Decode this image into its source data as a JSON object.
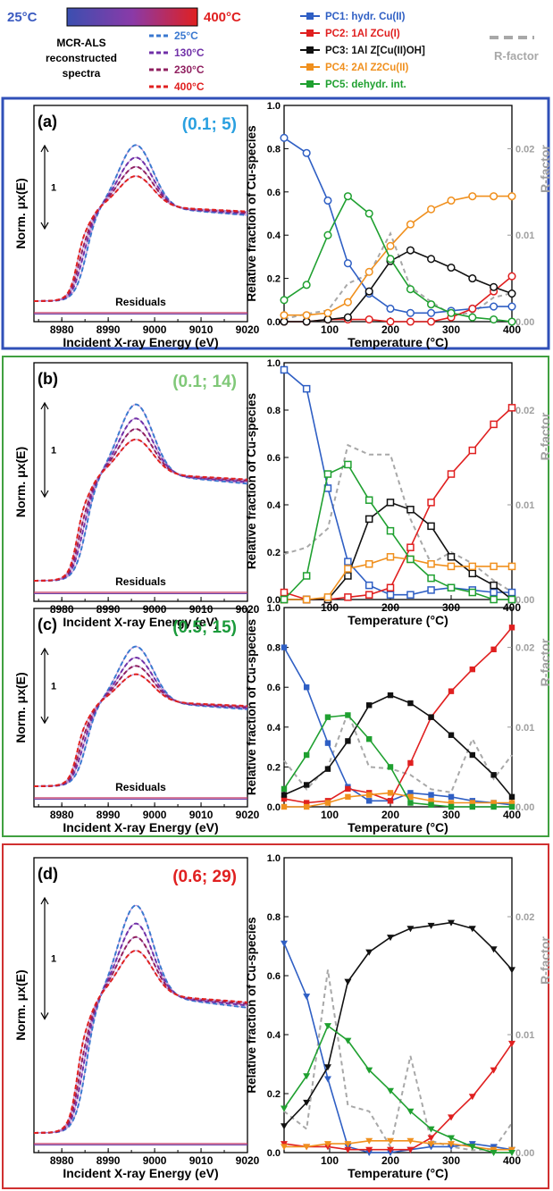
{
  "header": {
    "gradient": {
      "min_label": "25°C",
      "max_label": "400°C",
      "from_color": "#3b4fb0",
      "to_color": "#e02020"
    },
    "mcr_title": [
      "MCR-ALS",
      "reconstructed",
      "spectra"
    ],
    "temps": [
      {
        "label": "25°C",
        "color": "#3a78d0"
      },
      {
        "label": "130°C",
        "color": "#7030a8"
      },
      {
        "label": "230°C",
        "color": "#902060"
      },
      {
        "label": "400°C",
        "color": "#e02020"
      }
    ],
    "components": [
      {
        "id": "PC1",
        "label": "PC1: hydr. Cu(II)",
        "color": "#2f5fc4",
        "marker": "square"
      },
      {
        "id": "PC2",
        "label": "PC2: 1Al ZCu(I)",
        "color": "#e02020",
        "marker": "square"
      },
      {
        "id": "PC3",
        "label": "PC3: 1Al Z[Cu(II)OH]",
        "color": "#111111",
        "marker": "square"
      },
      {
        "id": "PC4",
        "label": "PC4: 2Al Z2Cu(II)",
        "color": "#f0901e",
        "marker": "square"
      },
      {
        "id": "PC5",
        "label": "PC5: dehydr. int.",
        "color": "#1fa030",
        "marker": "square"
      }
    ],
    "rfactor_label": "R-factor",
    "rfactor_color": "#a8a8a8"
  },
  "xanes_axis": {
    "xlabel": "Incident X-ray Energy (eV)",
    "ylabel": "Norm. μx(E)",
    "ticks": [
      "8980",
      "8990",
      "9000",
      "9010",
      "9020"
    ],
    "scale_label": "1",
    "residuals_label": "Residuals"
  },
  "frac_axis": {
    "xlabel": "Temperature (°C)",
    "ylabel": "Relative fraction of Cu-species",
    "rlabel": "R-factor",
    "yticks": [
      "0.0",
      "0.2",
      "0.4",
      "0.6",
      "0.8",
      "1.0"
    ],
    "xticks": [
      "100",
      "200",
      "300",
      "400"
    ],
    "rticks": [
      "0.00",
      "0.01",
      "0.02"
    ]
  },
  "panels": [
    {
      "tag": "(a)",
      "params": "(0.1; 5)",
      "params_color": "#2aa0e0",
      "frame_color": "#3050b8"
    },
    {
      "tag": "(b)",
      "params": "(0.1; 14)",
      "params_color": "#80c878",
      "frame_color": "#40a040"
    },
    {
      "tag": "(c)",
      "params": "(0.5; 15)",
      "params_color": "#1a9a3a",
      "frame_color": "#40a040"
    },
    {
      "tag": "(d)",
      "params": "(0.6; 29)",
      "params_color": "#e02020",
      "frame_color": "#d03030"
    }
  ],
  "chart_data": [
    {
      "panel": "a",
      "type": "line",
      "xlabel": "Temperature (°C)",
      "ylabel": "Relative fraction of Cu-species",
      "y2label": "R-factor",
      "xlim": [
        25,
        400
      ],
      "ylim": [
        0,
        1.0
      ],
      "y2lim": [
        0,
        0.025
      ],
      "marker": "open-circle",
      "x": [
        25,
        62,
        97,
        130,
        165,
        200,
        233,
        267,
        300,
        335,
        370,
        400
      ],
      "series": [
        {
          "name": "PC1: hydr. Cu(II)",
          "values": [
            0.85,
            0.78,
            0.56,
            0.27,
            0.13,
            0.06,
            0.04,
            0.04,
            0.05,
            0.06,
            0.07,
            0.07
          ]
        },
        {
          "name": "PC2: 1Al ZCu(I)",
          "values": [
            0.0,
            0.0,
            0.01,
            0.01,
            0.01,
            0.0,
            0.0,
            0.0,
            0.02,
            0.06,
            0.14,
            0.21
          ]
        },
        {
          "name": "PC3: 1Al Z[Cu(II)OH]",
          "values": [
            0.0,
            0.0,
            0.01,
            0.02,
            0.14,
            0.28,
            0.33,
            0.29,
            0.25,
            0.2,
            0.16,
            0.13
          ]
        },
        {
          "name": "PC4: 2Al Z2Cu(II)",
          "values": [
            0.03,
            0.03,
            0.04,
            0.09,
            0.23,
            0.35,
            0.45,
            0.52,
            0.56,
            0.58,
            0.58,
            0.58
          ]
        },
        {
          "name": "PC5: dehydr. int.",
          "values": [
            0.1,
            0.17,
            0.4,
            0.58,
            0.5,
            0.29,
            0.15,
            0.08,
            0.04,
            0.02,
            0.01,
            0.0
          ]
        }
      ],
      "rfactor": [
        0.0003,
        0.0009,
        0.0013,
        0.0044,
        0.0055,
        0.0102,
        0.004,
        0.0023,
        0.0008,
        0.001,
        0.0028,
        0.0033
      ]
    },
    {
      "panel": "b",
      "type": "line",
      "xlabel": "Temperature (°C)",
      "ylabel": "Relative fraction of Cu-species",
      "y2label": "R-factor",
      "xlim": [
        25,
        400
      ],
      "ylim": [
        0,
        1.0
      ],
      "y2lim": [
        0,
        0.025
      ],
      "marker": "open-square",
      "x": [
        25,
        62,
        97,
        130,
        165,
        200,
        233,
        267,
        300,
        335,
        370,
        400
      ],
      "series": [
        {
          "name": "PC1: hydr. Cu(II)",
          "values": [
            0.97,
            0.89,
            0.47,
            0.16,
            0.06,
            0.02,
            0.02,
            0.04,
            0.05,
            0.04,
            0.03,
            0.03
          ]
        },
        {
          "name": "PC2: 1Al ZCu(I)",
          "values": [
            0.03,
            0.0,
            0.0,
            0.01,
            0.02,
            0.05,
            0.22,
            0.41,
            0.53,
            0.63,
            0.74,
            0.81
          ]
        },
        {
          "name": "PC3: 1Al Z[Cu(II)OH]",
          "values": [
            0.0,
            0.0,
            0.0,
            0.1,
            0.34,
            0.41,
            0.38,
            0.31,
            0.18,
            0.11,
            0.06,
            0.0
          ]
        },
        {
          "name": "PC4: 2Al Z2Cu(II)",
          "values": [
            0.0,
            0.0,
            0.01,
            0.13,
            0.15,
            0.18,
            0.17,
            0.15,
            0.14,
            0.14,
            0.14,
            0.14
          ]
        },
        {
          "name": "PC5: dehydr. int.",
          "values": [
            0.0,
            0.1,
            0.53,
            0.57,
            0.42,
            0.29,
            0.17,
            0.09,
            0.05,
            0.03,
            0.0,
            0.0
          ]
        }
      ],
      "rfactor": [
        0.0048,
        0.0055,
        0.0075,
        0.0163,
        0.0153,
        0.0153,
        0.0085,
        0.0038,
        0.005,
        0.0038,
        0.002,
        0.0008
      ]
    },
    {
      "panel": "c",
      "type": "line",
      "xlabel": "Temperature (°C)",
      "ylabel": "Relative fraction of Cu-species",
      "y2label": "R-factor",
      "xlim": [
        25,
        400
      ],
      "ylim": [
        0,
        1.0
      ],
      "y2lim": [
        0,
        0.025
      ],
      "marker": "filled-square",
      "x": [
        25,
        62,
        97,
        130,
        165,
        200,
        233,
        267,
        300,
        335,
        370,
        400
      ],
      "series": [
        {
          "name": "PC1: hydr. Cu(II)",
          "values": [
            0.8,
            0.6,
            0.32,
            0.1,
            0.03,
            0.03,
            0.07,
            0.06,
            0.05,
            0.03,
            0.02,
            0.01
          ]
        },
        {
          "name": "PC2: 1Al ZCu(I)",
          "values": [
            0.04,
            0.02,
            0.03,
            0.09,
            0.07,
            0.03,
            0.22,
            0.45,
            0.58,
            0.69,
            0.79,
            0.9
          ]
        },
        {
          "name": "PC3: 1Al Z[Cu(II)OH]",
          "values": [
            0.06,
            0.11,
            0.19,
            0.33,
            0.51,
            0.56,
            0.52,
            0.45,
            0.36,
            0.26,
            0.16,
            0.05
          ]
        },
        {
          "name": "PC4: 2Al Z2Cu(II)",
          "values": [
            0.0,
            0.0,
            0.02,
            0.05,
            0.06,
            0.07,
            0.05,
            0.03,
            0.02,
            0.02,
            0.02,
            0.02
          ]
        },
        {
          "name": "PC5: dehydr. int.",
          "values": [
            0.09,
            0.26,
            0.45,
            0.46,
            0.34,
            0.2,
            0.02,
            0.01,
            0.0,
            0.0,
            0.0,
            0.0
          ]
        }
      ],
      "rfactor": [
        0.0058,
        0.0022,
        0.005,
        0.0118,
        0.005,
        0.0048,
        0.004,
        0.0022,
        0.0018,
        0.0085,
        0.0035,
        0.0065
      ]
    },
    {
      "panel": "d",
      "type": "line",
      "xlabel": "Temperature (°C)",
      "ylabel": "Relative fraction of Cu-species",
      "y2label": "R-factor",
      "xlim": [
        25,
        400
      ],
      "ylim": [
        0,
        1.0
      ],
      "y2lim": [
        0,
        0.025
      ],
      "marker": "filled-triangle-down",
      "x": [
        25,
        62,
        97,
        130,
        165,
        200,
        233,
        267,
        300,
        335,
        370,
        400
      ],
      "series": [
        {
          "name": "PC1: hydr. Cu(II)",
          "values": [
            0.71,
            0.53,
            0.25,
            0.02,
            0.0,
            0.0,
            0.01,
            0.02,
            0.02,
            0.03,
            0.02,
            0.01
          ]
        },
        {
          "name": "PC2: 1Al ZCu(I)",
          "values": [
            0.03,
            0.02,
            0.02,
            0.01,
            0.01,
            0.01,
            0.01,
            0.05,
            0.12,
            0.19,
            0.28,
            0.37
          ]
        },
        {
          "name": "PC3: 1Al Z[Cu(II)OH]",
          "values": [
            0.09,
            0.17,
            0.29,
            0.58,
            0.68,
            0.73,
            0.76,
            0.77,
            0.78,
            0.76,
            0.69,
            0.62
          ]
        },
        {
          "name": "PC4: 2Al Z2Cu(II)",
          "values": [
            0.02,
            0.02,
            0.03,
            0.03,
            0.04,
            0.04,
            0.04,
            0.03,
            0.03,
            0.02,
            0.01,
            0.01
          ]
        },
        {
          "name": "PC5: dehydr. int.",
          "values": [
            0.15,
            0.26,
            0.43,
            0.38,
            0.28,
            0.21,
            0.14,
            0.08,
            0.05,
            0.02,
            0.0,
            0.0
          ]
        }
      ],
      "rfactor": [
        0.0035,
        0.002,
        0.0155,
        0.004,
        0.0035,
        0.0005,
        0.0082,
        0.001,
        0.0005,
        0.0002,
        0.0003,
        0.0025
      ]
    }
  ]
}
